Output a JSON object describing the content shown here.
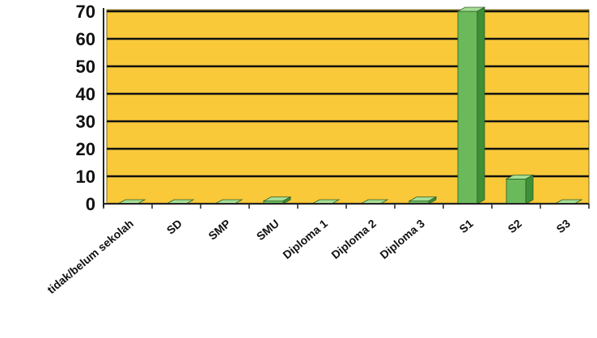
{
  "chart_data": {
    "type": "bar",
    "categories": [
      "tidak/belum sekolah",
      "SD",
      "SMP",
      "SMU",
      "Diploma 1",
      "Diploma 2",
      "Diploma 3",
      "S1",
      "S2",
      "S3"
    ],
    "values": [
      0,
      0,
      0,
      1,
      0,
      0,
      1,
      70,
      9,
      0
    ],
    "ylim": [
      0,
      70
    ],
    "yticks": [
      0,
      10,
      20,
      30,
      40,
      50,
      60,
      70
    ],
    "grid": true,
    "legend": "none",
    "colors": {
      "plot_background": "#f9c93a",
      "bar_front": "#6ab95a",
      "bar_top": "#a6dd96",
      "bar_side": "#3f8f36",
      "gridline": "#111111"
    }
  }
}
